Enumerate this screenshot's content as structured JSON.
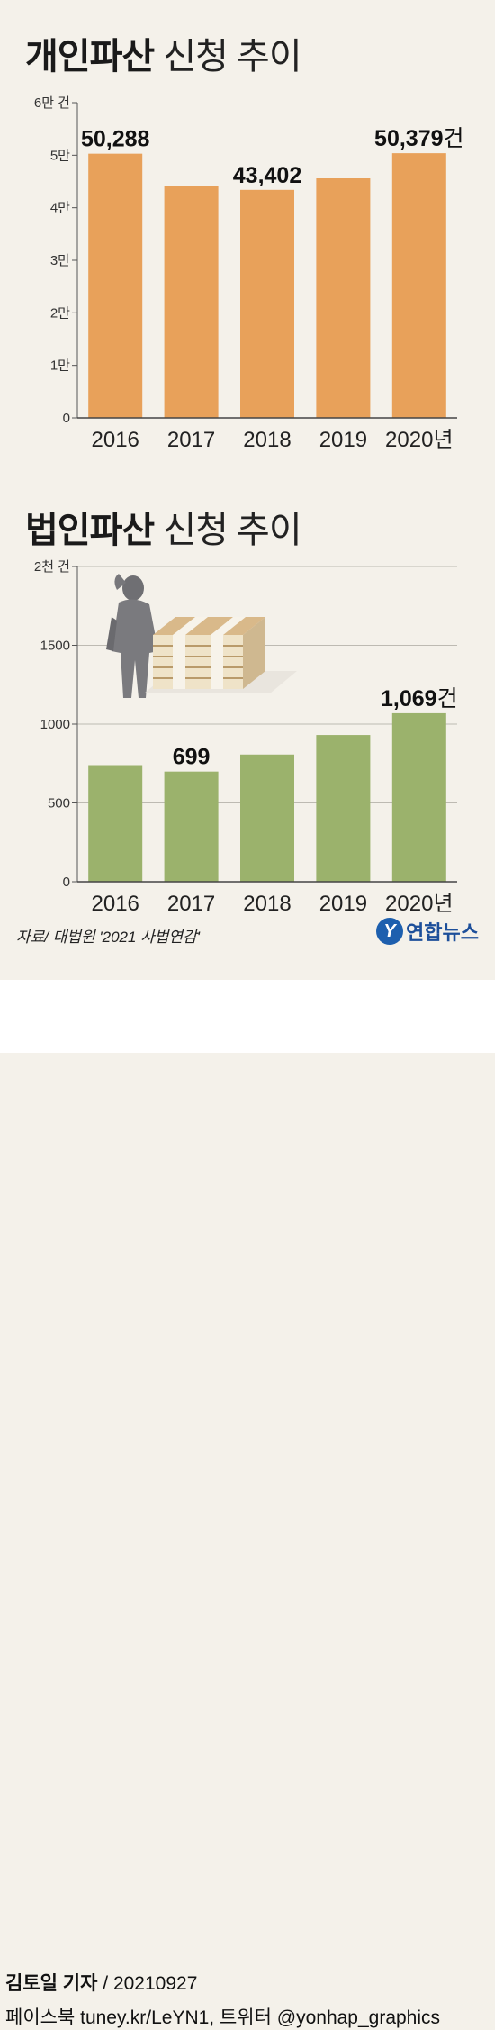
{
  "colors": {
    "personal_bar": "#e8a15a",
    "corporate_bar": "#9bb26c",
    "background": "#f4f1ea"
  },
  "chart_data": [
    {
      "type": "bar",
      "title_bold": "개인파산",
      "title_light": "신청 추이",
      "categories": [
        "2016",
        "2017",
        "2018",
        "2019",
        "2020"
      ],
      "category_suffix_last": "년",
      "values": [
        50288,
        44200,
        43402,
        45600,
        50379
      ],
      "ylim": [
        0,
        60000
      ],
      "yticks": [
        {
          "value": 0,
          "label": "0"
        },
        {
          "value": 10000,
          "label": "1만"
        },
        {
          "value": 20000,
          "label": "2만"
        },
        {
          "value": 30000,
          "label": "3만"
        },
        {
          "value": 40000,
          "label": "4만"
        },
        {
          "value": 50000,
          "label": "5만"
        },
        {
          "value": 60000,
          "label": "6만 건"
        }
      ],
      "data_labels": [
        {
          "index": 0,
          "text": "50,288",
          "suffix": ""
        },
        {
          "index": 2,
          "text": "43,402",
          "suffix": ""
        },
        {
          "index": 4,
          "text": "50,379",
          "suffix": "건"
        }
      ],
      "grid": false
    },
    {
      "type": "bar",
      "title_bold": "법인파산",
      "title_light": "신청 추이",
      "categories": [
        "2016",
        "2017",
        "2018",
        "2019",
        "2020"
      ],
      "category_suffix_last": "년",
      "values": [
        740,
        699,
        807,
        931,
        1069
      ],
      "ylim": [
        0,
        2000
      ],
      "yticks": [
        {
          "value": 0,
          "label": "0"
        },
        {
          "value": 500,
          "label": "500"
        },
        {
          "value": 1000,
          "label": "1000"
        },
        {
          "value": 1500,
          "label": "1500"
        },
        {
          "value": 2000,
          "label": "2천 건"
        }
      ],
      "data_labels": [
        {
          "index": 1,
          "text": "699",
          "suffix": ""
        },
        {
          "index": 4,
          "text": "1,069",
          "suffix": "건"
        }
      ],
      "grid": true
    }
  ],
  "source": "자료/ 대법원 '2021 사법연감'",
  "logo": {
    "mark": "Y",
    "text": "연합뉴스"
  },
  "footer": {
    "reporter": "김토일 기자",
    "date": " / 20210927",
    "social": "페이스북 tuney.kr/LeYN1, 트위터 @yonhap_graphics"
  }
}
